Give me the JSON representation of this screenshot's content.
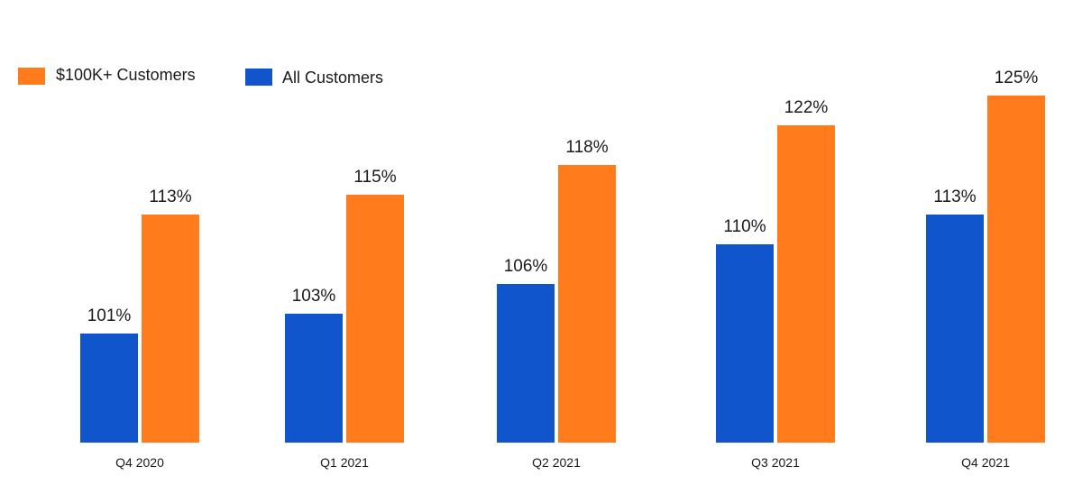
{
  "chart_data": {
    "type": "bar",
    "title": "",
    "xlabel": "",
    "ylabel": "",
    "ylim": [
      90,
      126
    ],
    "categories": [
      "Q4 2020",
      "Q1 2021",
      "Q2 2021",
      "Q3 2021",
      "Q4 2021"
    ],
    "series": [
      {
        "name": "All Customers",
        "color": "#1155cc",
        "values": [
          101,
          103,
          106,
          110,
          113
        ],
        "labels": [
          "101%",
          "103%",
          "106%",
          "110%",
          "113%"
        ]
      },
      {
        "name": "$100K+ Customers",
        "color": "#ff7b1c",
        "values": [
          113,
          115,
          118,
          122,
          125
        ],
        "labels": [
          "113%",
          "115%",
          "118%",
          "122%",
          "125%"
        ]
      }
    ],
    "legend": {
      "position": "top-left",
      "items": [
        {
          "label": "$100K+ Customers",
          "color": "#ff7b1c"
        },
        {
          "label": "All Customers",
          "color": "#1155cc"
        }
      ]
    },
    "grid": false
  }
}
